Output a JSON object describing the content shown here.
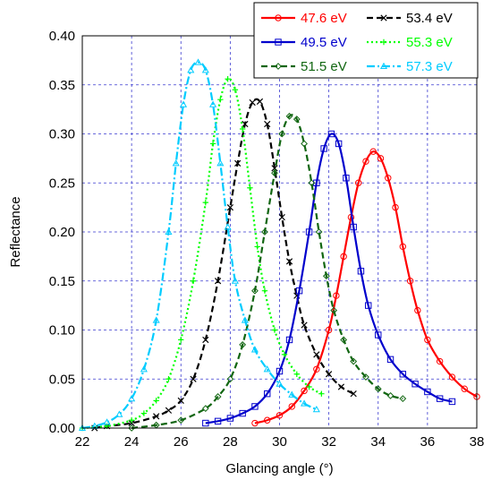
{
  "chart_data": {
    "type": "line",
    "title": "",
    "xlabel": "Glancing angle (°)",
    "ylabel": "Reflectance",
    "xlim": [
      22,
      38
    ],
    "ylim": [
      0,
      0.4
    ],
    "xticks": [
      "22",
      "24",
      "26",
      "28",
      "30",
      "32",
      "34",
      "36",
      "38"
    ],
    "yticks": [
      "0.00",
      "0.05",
      "0.10",
      "0.15",
      "0.20",
      "0.25",
      "0.30",
      "0.35",
      "0.40"
    ],
    "grid": true,
    "legend_position": "top-right",
    "series": [
      {
        "name": "47.6 eV",
        "color": "#ff0000",
        "dash": "solid",
        "marker": "circle",
        "x": [
          29.0,
          29.5,
          30.0,
          30.5,
          31.0,
          31.5,
          32.0,
          32.3,
          32.6,
          32.9,
          33.2,
          33.5,
          33.8,
          34.1,
          34.4,
          34.7,
          35.0,
          35.3,
          35.6,
          36.0,
          36.5,
          37.0,
          37.5,
          38.0
        ],
        "y": [
          0.005,
          0.008,
          0.013,
          0.022,
          0.038,
          0.06,
          0.1,
          0.135,
          0.175,
          0.215,
          0.25,
          0.272,
          0.282,
          0.275,
          0.255,
          0.225,
          0.185,
          0.15,
          0.12,
          0.09,
          0.068,
          0.052,
          0.04,
          0.032
        ]
      },
      {
        "name": "53.4 eV",
        "color": "#000000",
        "dash": "dashed",
        "marker": "x",
        "x": [
          22.5,
          23.0,
          24.0,
          25.0,
          25.5,
          26.0,
          26.5,
          27.0,
          27.5,
          28.0,
          28.3,
          28.6,
          28.9,
          29.2,
          29.5,
          29.8,
          30.1,
          30.4,
          30.7,
          31.0,
          31.5,
          32.0,
          32.5,
          33.0
        ],
        "y": [
          0.0,
          0.002,
          0.005,
          0.012,
          0.018,
          0.028,
          0.05,
          0.09,
          0.15,
          0.225,
          0.27,
          0.31,
          0.332,
          0.333,
          0.31,
          0.265,
          0.215,
          0.17,
          0.135,
          0.105,
          0.075,
          0.055,
          0.042,
          0.035
        ]
      },
      {
        "name": "49.5 eV",
        "color": "#0000cc",
        "dash": "solid",
        "marker": "square",
        "x": [
          27.0,
          27.5,
          28.0,
          28.5,
          29.0,
          29.5,
          30.0,
          30.4,
          30.8,
          31.2,
          31.5,
          31.8,
          32.1,
          32.4,
          32.7,
          33.0,
          33.3,
          33.6,
          34.0,
          34.5,
          35.0,
          35.5,
          36.0,
          36.5,
          37.0
        ],
        "y": [
          0.005,
          0.007,
          0.01,
          0.015,
          0.022,
          0.035,
          0.058,
          0.09,
          0.14,
          0.2,
          0.25,
          0.285,
          0.3,
          0.29,
          0.255,
          0.205,
          0.16,
          0.125,
          0.095,
          0.07,
          0.055,
          0.045,
          0.037,
          0.03,
          0.027
        ]
      },
      {
        "name": "55.3 eV",
        "color": "#00ff00",
        "dash": "dotted",
        "marker": "plus",
        "x": [
          22.0,
          23.0,
          24.0,
          24.5,
          25.0,
          25.5,
          26.0,
          26.5,
          27.0,
          27.3,
          27.6,
          27.9,
          28.2,
          28.5,
          28.8,
          29.1,
          29.4,
          29.8,
          30.2,
          30.7,
          31.2,
          31.7
        ],
        "y": [
          0.0,
          0.002,
          0.008,
          0.015,
          0.028,
          0.05,
          0.09,
          0.15,
          0.23,
          0.29,
          0.335,
          0.356,
          0.345,
          0.305,
          0.245,
          0.185,
          0.14,
          0.1,
          0.075,
          0.055,
          0.042,
          0.035
        ]
      },
      {
        "name": "51.5 eV",
        "color": "#116611",
        "dash": "dashed",
        "marker": "diamond",
        "x": [
          24.0,
          25.0,
          26.0,
          27.0,
          27.5,
          28.0,
          28.5,
          29.0,
          29.4,
          29.8,
          30.1,
          30.4,
          30.7,
          31.0,
          31.3,
          31.6,
          31.9,
          32.2,
          32.6,
          33.0,
          33.5,
          34.0,
          34.5,
          35.0
        ],
        "y": [
          0.0,
          0.003,
          0.008,
          0.02,
          0.032,
          0.05,
          0.085,
          0.14,
          0.2,
          0.26,
          0.3,
          0.318,
          0.315,
          0.29,
          0.25,
          0.2,
          0.155,
          0.12,
          0.09,
          0.068,
          0.052,
          0.04,
          0.033,
          0.03
        ]
      },
      {
        "name": "57.3 eV",
        "color": "#00ccff",
        "dash": "dashdot",
        "marker": "triangle",
        "x": [
          22.0,
          22.5,
          23.0,
          23.5,
          24.0,
          24.5,
          25.0,
          25.5,
          25.8,
          26.1,
          26.4,
          26.7,
          27.0,
          27.3,
          27.6,
          27.9,
          28.2,
          28.6,
          29.0,
          29.5,
          30.0,
          30.5,
          31.0,
          31.5
        ],
        "y": [
          0.0,
          0.002,
          0.006,
          0.014,
          0.03,
          0.06,
          0.11,
          0.2,
          0.27,
          0.33,
          0.365,
          0.373,
          0.365,
          0.33,
          0.27,
          0.205,
          0.15,
          0.11,
          0.08,
          0.06,
          0.045,
          0.034,
          0.025,
          0.019
        ]
      }
    ]
  }
}
